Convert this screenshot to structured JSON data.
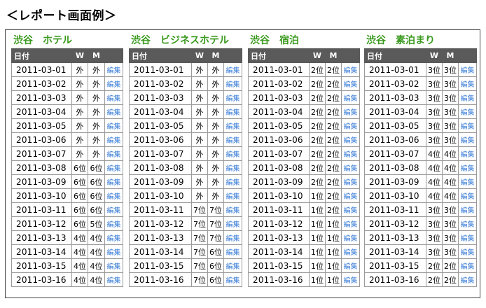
{
  "page_title": "＜レポート画面例＞",
  "edit_label": "編集",
  "panels": [
    {
      "title": "渋谷　ホテル",
      "headers": {
        "date": "日付",
        "w": "W",
        "m": "M"
      },
      "rows": [
        {
          "date": "2011-03-01",
          "w": "外",
          "m": "外"
        },
        {
          "date": "2011-03-02",
          "w": "外",
          "m": "外"
        },
        {
          "date": "2011-03-03",
          "w": "外",
          "m": "外"
        },
        {
          "date": "2011-03-04",
          "w": "外",
          "m": "外"
        },
        {
          "date": "2011-03-05",
          "w": "外",
          "m": "外"
        },
        {
          "date": "2011-03-06",
          "w": "外",
          "m": "外"
        },
        {
          "date": "2011-03-07",
          "w": "外",
          "m": "外"
        },
        {
          "date": "2011-03-08",
          "w": "6位",
          "m": "6位"
        },
        {
          "date": "2011-03-09",
          "w": "6位",
          "m": "6位"
        },
        {
          "date": "2011-03-10",
          "w": "6位",
          "m": "6位"
        },
        {
          "date": "2011-03-11",
          "w": "6位",
          "m": "6位"
        },
        {
          "date": "2011-03-12",
          "w": "6位",
          "m": "5位"
        },
        {
          "date": "2011-03-13",
          "w": "4位",
          "m": "4位"
        },
        {
          "date": "2011-03-14",
          "w": "4位",
          "m": "4位"
        },
        {
          "date": "2011-03-15",
          "w": "4位",
          "m": "4位"
        },
        {
          "date": "2011-03-16",
          "w": "4位",
          "m": "4位"
        }
      ]
    },
    {
      "title": "渋谷　ビジネスホテル",
      "headers": {
        "date": "日付",
        "w": "W",
        "m": "M"
      },
      "rows": [
        {
          "date": "2011-03-01",
          "w": "外",
          "m": "外"
        },
        {
          "date": "2011-03-02",
          "w": "外",
          "m": "外"
        },
        {
          "date": "2011-03-03",
          "w": "外",
          "m": "外"
        },
        {
          "date": "2011-03-04",
          "w": "外",
          "m": "外"
        },
        {
          "date": "2011-03-05",
          "w": "外",
          "m": "外"
        },
        {
          "date": "2011-03-06",
          "w": "外",
          "m": "外"
        },
        {
          "date": "2011-03-07",
          "w": "外",
          "m": "外"
        },
        {
          "date": "2011-03-08",
          "w": "外",
          "m": "外"
        },
        {
          "date": "2011-03-09",
          "w": "外",
          "m": "外"
        },
        {
          "date": "2011-03-10",
          "w": "外",
          "m": "外"
        },
        {
          "date": "2011-03-11",
          "w": "7位",
          "m": "7位"
        },
        {
          "date": "2011-03-12",
          "w": "7位",
          "m": "7位"
        },
        {
          "date": "2011-03-13",
          "w": "7位",
          "m": "7位"
        },
        {
          "date": "2011-03-14",
          "w": "7位",
          "m": "6位"
        },
        {
          "date": "2011-03-15",
          "w": "7位",
          "m": "6位"
        },
        {
          "date": "2011-03-16",
          "w": "7位",
          "m": "6位"
        }
      ]
    },
    {
      "title": "渋谷　宿泊",
      "headers": {
        "date": "日付",
        "w": "W",
        "m": "M"
      },
      "rows": [
        {
          "date": "2011-03-01",
          "w": "2位",
          "m": "2位"
        },
        {
          "date": "2011-03-02",
          "w": "2位",
          "m": "2位"
        },
        {
          "date": "2011-03-03",
          "w": "2位",
          "m": "2位"
        },
        {
          "date": "2011-03-04",
          "w": "2位",
          "m": "2位"
        },
        {
          "date": "2011-03-05",
          "w": "2位",
          "m": "2位"
        },
        {
          "date": "2011-03-06",
          "w": "2位",
          "m": "2位"
        },
        {
          "date": "2011-03-07",
          "w": "2位",
          "m": "2位"
        },
        {
          "date": "2011-03-08",
          "w": "2位",
          "m": "2位"
        },
        {
          "date": "2011-03-09",
          "w": "2位",
          "m": "2位"
        },
        {
          "date": "2011-03-10",
          "w": "1位",
          "m": "2位"
        },
        {
          "date": "2011-03-11",
          "w": "1位",
          "m": "2位"
        },
        {
          "date": "2011-03-12",
          "w": "1位",
          "m": "1位"
        },
        {
          "date": "2011-03-13",
          "w": "1位",
          "m": "1位"
        },
        {
          "date": "2011-03-14",
          "w": "1位",
          "m": "1位"
        },
        {
          "date": "2011-03-15",
          "w": "1位",
          "m": "1位"
        },
        {
          "date": "2011-03-16",
          "w": "1位",
          "m": "1位"
        }
      ]
    },
    {
      "title": "渋谷　素泊まり",
      "headers": {
        "date": "日付",
        "w": "W",
        "m": "M"
      },
      "rows": [
        {
          "date": "2011-03-01",
          "w": "3位",
          "m": "3位"
        },
        {
          "date": "2011-03-02",
          "w": "3位",
          "m": "3位"
        },
        {
          "date": "2011-03-03",
          "w": "3位",
          "m": "3位"
        },
        {
          "date": "2011-03-04",
          "w": "3位",
          "m": "3位"
        },
        {
          "date": "2011-03-05",
          "w": "3位",
          "m": "3位"
        },
        {
          "date": "2011-03-06",
          "w": "3位",
          "m": "3位"
        },
        {
          "date": "2011-03-07",
          "w": "4位",
          "m": "4位"
        },
        {
          "date": "2011-03-08",
          "w": "4位",
          "m": "4位"
        },
        {
          "date": "2011-03-09",
          "w": "4位",
          "m": "4位"
        },
        {
          "date": "2011-03-10",
          "w": "4位",
          "m": "4位"
        },
        {
          "date": "2011-03-11",
          "w": "3位",
          "m": "3位"
        },
        {
          "date": "2011-03-12",
          "w": "3位",
          "m": "3位"
        },
        {
          "date": "2011-03-13",
          "w": "3位",
          "m": "3位"
        },
        {
          "date": "2011-03-14",
          "w": "3位",
          "m": "3位"
        },
        {
          "date": "2011-03-15",
          "w": "2位",
          "m": "2位"
        },
        {
          "date": "2011-03-16",
          "w": "2位",
          "m": "2位"
        }
      ]
    }
  ]
}
